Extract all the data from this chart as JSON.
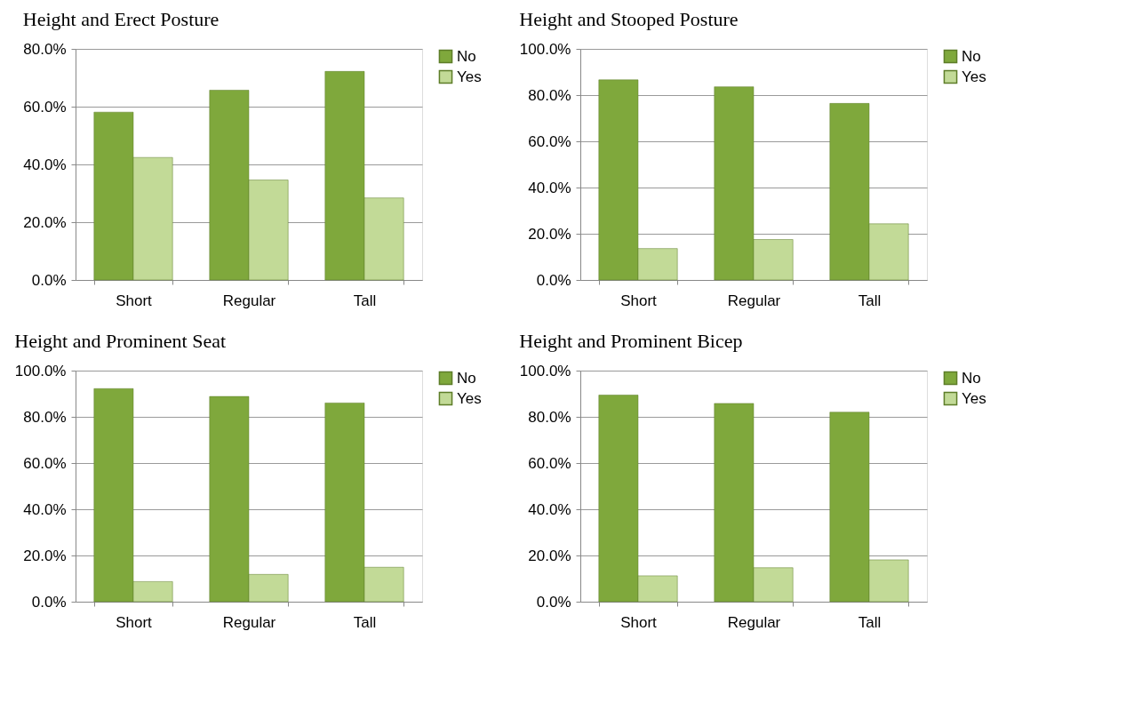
{
  "chart_data": [
    {
      "type": "bar",
      "title": "Height and Erect Posture",
      "categories": [
        "Short",
        "Regular",
        "Tall"
      ],
      "series": [
        {
          "name": "No",
          "color": "#7fa83c",
          "values": [
            58.1,
            65.7,
            72.2
          ]
        },
        {
          "name": "Yes",
          "color": "#c2da97",
          "values": [
            42.4,
            34.6,
            28.4
          ]
        }
      ],
      "ylim": [
        0,
        80
      ],
      "yticks": [
        {
          "value": 0,
          "label": "0.0%"
        },
        {
          "value": 20,
          "label": "20.0%"
        },
        {
          "value": 40,
          "label": "40.0%"
        },
        {
          "value": 60,
          "label": "60.0%"
        },
        {
          "value": 80,
          "label": "80.0%"
        }
      ],
      "grid": "y",
      "legend": "right"
    },
    {
      "type": "bar",
      "title": "Height and Stooped Posture",
      "categories": [
        "Short",
        "Regular",
        "Tall"
      ],
      "series": [
        {
          "name": "No",
          "color": "#7fa83c",
          "values": [
            86.6,
            83.6,
            76.4
          ]
        },
        {
          "name": "Yes",
          "color": "#c2da97",
          "values": [
            13.6,
            17.5,
            24.3
          ]
        }
      ],
      "ylim": [
        0,
        100
      ],
      "yticks": [
        {
          "value": 0,
          "label": "0.0%"
        },
        {
          "value": 20,
          "label": "20.0%"
        },
        {
          "value": 40,
          "label": "40.0%"
        },
        {
          "value": 60,
          "label": "60.0%"
        },
        {
          "value": 80,
          "label": "80.0%"
        },
        {
          "value": 100,
          "label": "100.0%"
        }
      ],
      "grid": "y",
      "legend": "right"
    },
    {
      "type": "bar",
      "title": "Height and Prominent Seat",
      "categories": [
        "Short",
        "Regular",
        "Tall"
      ],
      "series": [
        {
          "name": "No",
          "color": "#7fa83c",
          "values": [
            92.2,
            88.8,
            86.0
          ]
        },
        {
          "name": "Yes",
          "color": "#c2da97",
          "values": [
            8.7,
            11.8,
            14.9
          ]
        }
      ],
      "ylim": [
        0,
        100
      ],
      "yticks": [
        {
          "value": 0,
          "label": "0.0%"
        },
        {
          "value": 20,
          "label": "20.0%"
        },
        {
          "value": 40,
          "label": "40.0%"
        },
        {
          "value": 60,
          "label": "60.0%"
        },
        {
          "value": 80,
          "label": "80.0%"
        },
        {
          "value": 100,
          "label": "100.0%"
        }
      ],
      "grid": "y",
      "legend": "right"
    },
    {
      "type": "bar",
      "title": "Height and Prominent Bicep",
      "categories": [
        "Short",
        "Regular",
        "Tall"
      ],
      "series": [
        {
          "name": "No",
          "color": "#7fa83c",
          "values": [
            89.4,
            85.8,
            82.0
          ]
        },
        {
          "name": "Yes",
          "color": "#c2da97",
          "values": [
            11.2,
            14.7,
            18.1
          ]
        }
      ],
      "ylim": [
        0,
        100
      ],
      "yticks": [
        {
          "value": 0,
          "label": "0.0%"
        },
        {
          "value": 20,
          "label": "20.0%"
        },
        {
          "value": 40,
          "label": "40.0%"
        },
        {
          "value": 60,
          "label": "60.0%"
        },
        {
          "value": 80,
          "label": "80.0%"
        },
        {
          "value": 100,
          "label": "100.0%"
        }
      ],
      "grid": "y",
      "legend": "right"
    }
  ]
}
